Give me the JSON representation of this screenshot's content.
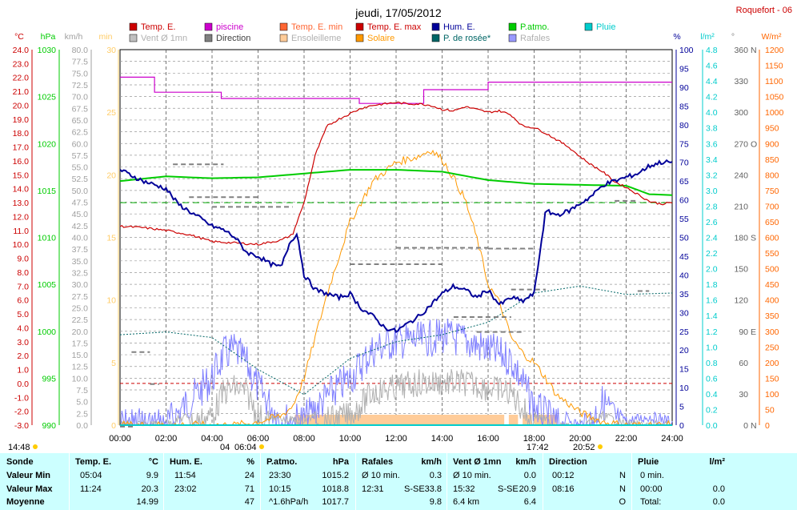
{
  "header": {
    "title": "jeudi, 17/05/2012",
    "station": "Roquefort - 06"
  },
  "legend": [
    {
      "label": "Temp. E.",
      "color": "#cc0000"
    },
    {
      "label": "piscine",
      "color": "#cc00cc"
    },
    {
      "label": "Temp. E. min",
      "color": "#ff6633"
    },
    {
      "label": "Temp. E. max",
      "color": "#cc0000"
    },
    {
      "label": "Hum. E.",
      "color": "#000099"
    },
    {
      "label": "P.atmo.",
      "color": "#00cc00"
    },
    {
      "label": "Pluie",
      "color": "#00cccc"
    },
    {
      "label": "Vent Ø 1mn",
      "color": "#c0c0c0"
    },
    {
      "label": "Direction",
      "color": "#808080"
    },
    {
      "label": "Ensoleilleme",
      "color": "#ffcc99"
    },
    {
      "label": "Solaire",
      "color": "#ff9900"
    },
    {
      "label": "P. de rosée*",
      "color": "#006666"
    },
    {
      "label": "Rafales",
      "color": "#9999ff"
    }
  ],
  "axes": {
    "temp": {
      "unit": "°C",
      "ticks": [
        "24.0",
        "23.0",
        "22.0",
        "21.0",
        "20.0",
        "19.0",
        "18.0",
        "17.0",
        "16.0",
        "15.0",
        "14.0",
        "13.0",
        "12.0",
        "11.0",
        "10.0",
        "9.0",
        "8.0",
        "7.0",
        "6.0",
        "5.0",
        "4.0",
        "3.0",
        "2.0",
        "1.0",
        "0.0",
        "-1.0",
        "-2.0",
        "-3.0"
      ],
      "color": "#cc0000"
    },
    "press": {
      "unit": "hPa",
      "ticks": [
        "1030",
        "1025",
        "1020",
        "1015",
        "1010",
        "1005",
        "1000",
        "995",
        "990"
      ],
      "color": "#00cc00"
    },
    "wind": {
      "unit": "km/h",
      "ticks": [
        "80.0",
        "77.5",
        "75.0",
        "72.5",
        "70.0",
        "67.5",
        "65.0",
        "62.5",
        "60.0",
        "57.5",
        "55.0",
        "52.5",
        "50.0",
        "47.5",
        "45.0",
        "42.5",
        "40.0",
        "37.5",
        "35.0",
        "32.5",
        "30.0",
        "27.5",
        "25.0",
        "22.5",
        "20.0",
        "17.5",
        "15.0",
        "12.5",
        "10.0",
        "7.5",
        "5.0",
        "2.5",
        "0.0"
      ],
      "color": "#a0a0a0"
    },
    "minutes": {
      "unit": "min",
      "ticks": [
        "30",
        "25",
        "20",
        "15",
        "10",
        "5",
        "0"
      ],
      "color": "#ffcc66"
    },
    "hum": {
      "unit": "%",
      "ticks": [
        "100",
        "95",
        "90",
        "85",
        "80",
        "75",
        "70",
        "65",
        "60",
        "55",
        "50",
        "45",
        "40",
        "35",
        "30",
        "25",
        "20",
        "15",
        "10",
        "5",
        "0"
      ],
      "color": "#000099"
    },
    "rain": {
      "unit": "l/m²",
      "ticks": [
        "4.8",
        "4.6",
        "4.4",
        "4.2",
        "4.0",
        "3.8",
        "3.6",
        "3.4",
        "3.2",
        "3.0",
        "2.8",
        "2.6",
        "2.4",
        "2.2",
        "2.0",
        "1.8",
        "1.6",
        "1.4",
        "1.2",
        "1.0",
        "0.8",
        "0.6",
        "0.4",
        "0.2",
        "0.0"
      ],
      "color": "#00cccc"
    },
    "dir": {
      "unit": "°",
      "ticks": [
        {
          "v": "360",
          "c": "N"
        },
        {
          "v": "330",
          "c": ""
        },
        {
          "v": "300",
          "c": ""
        },
        {
          "v": "270",
          "c": "O"
        },
        {
          "v": "240",
          "c": ""
        },
        {
          "v": "210",
          "c": ""
        },
        {
          "v": "180",
          "c": "S"
        },
        {
          "v": "150",
          "c": ""
        },
        {
          "v": "120",
          "c": ""
        },
        {
          "v": "90",
          "c": "E"
        },
        {
          "v": "60",
          "c": ""
        },
        {
          "v": "30",
          "c": ""
        },
        {
          "v": "0",
          "c": "N"
        }
      ],
      "color": "#808080"
    },
    "solar": {
      "unit": "W/m²",
      "ticks": [
        "1200",
        "1150",
        "1100",
        "1050",
        "1000",
        "950",
        "900",
        "850",
        "800",
        "750",
        "700",
        "650",
        "600",
        "550",
        "500",
        "450",
        "400",
        "350",
        "300",
        "250",
        "200",
        "150",
        "100",
        "50",
        "0"
      ],
      "color": "#ff6600"
    },
    "x_ticks": [
      "00:00",
      "02:00",
      "04:00",
      "06:00",
      "08:00",
      "10:00",
      "12:00",
      "14:00",
      "16:00",
      "18:00",
      "20:00",
      "22:00",
      "24:00"
    ]
  },
  "markers": {
    "sunrise": "06:04",
    "sunset": "20:52",
    "start": "14:48",
    "min_t": "04",
    "max_t": "17:42"
  },
  "chart_data": {
    "type": "line",
    "title": "jeudi, 17/05/2012",
    "x_unit": "hours",
    "series": [
      {
        "name": "Temp. E.",
        "unit": "°C",
        "x": [
          0,
          1,
          2,
          3,
          4,
          5,
          6,
          7,
          7.5,
          8,
          8.5,
          9,
          9.5,
          10,
          10.5,
          11,
          11.5,
          12,
          12.5,
          13,
          13.5,
          14,
          14.5,
          15,
          15.5,
          16,
          16.5,
          17,
          17.5,
          18,
          18.5,
          19,
          19.5,
          20,
          20.5,
          21,
          21.5,
          22,
          22.5,
          23,
          23.5,
          24
        ],
        "y": [
          11.3,
          11.2,
          11.0,
          10.7,
          10.2,
          10.1,
          10.0,
          10.3,
          10.7,
          13,
          16.5,
          18.5,
          19.0,
          19.4,
          19.8,
          20.0,
          20.1,
          20.2,
          20.1,
          20.1,
          20.0,
          19.7,
          19.6,
          19.9,
          19.7,
          19.5,
          19.6,
          19.3,
          18.5,
          18.4,
          18.0,
          17.5,
          17.0,
          16.3,
          15.7,
          15.2,
          14.5,
          14.1,
          13.6,
          13.1,
          12.9,
          13.0
        ]
      },
      {
        "name": "piscine",
        "unit": "min",
        "x": [
          0,
          1.4,
          1.5,
          4.3,
          4.4,
          10.3,
          10.4,
          13.1,
          13.2,
          15.6,
          16,
          17,
          18,
          20,
          22,
          24
        ],
        "y": [
          27.8,
          27.8,
          26.6,
          26.6,
          26.1,
          26.1,
          25.7,
          25.7,
          26.8,
          26.8,
          27.4,
          27.4,
          27.4,
          27.4,
          27.4,
          27.4
        ]
      },
      {
        "name": "Hum. E.",
        "unit": "%",
        "x": [
          0,
          1,
          2,
          2.5,
          3,
          4,
          4.5,
          5,
          5.5,
          6,
          6.5,
          7,
          7.4,
          7.7,
          8,
          8.5,
          9,
          9.5,
          10,
          10.5,
          11,
          11.5,
          12,
          12.5,
          13,
          13.5,
          14,
          14.5,
          15,
          15.5,
          16,
          16.5,
          17,
          17.5,
          18,
          18.5,
          19,
          19.5,
          20,
          20.5,
          21,
          21.5,
          22,
          22.5,
          23,
          23.5,
          24
        ],
        "y": [
          68,
          65,
          63,
          59,
          57,
          53,
          52,
          50,
          46,
          45,
          43,
          42,
          49,
          51,
          40,
          36,
          35,
          34,
          35,
          31,
          29,
          26,
          25,
          27,
          29,
          32,
          35,
          37,
          36,
          34,
          36,
          32,
          34,
          33,
          35,
          57,
          56,
          57,
          59,
          61,
          64,
          65,
          66,
          67,
          69,
          70,
          70
        ]
      },
      {
        "name": "P.atmo.",
        "unit": "hPa",
        "x": [
          0,
          2,
          4,
          6,
          8,
          10,
          12,
          14,
          16,
          18,
          20,
          22,
          23,
          24
        ],
        "y": [
          1016.0,
          1016.5,
          1016.3,
          1016.4,
          1016.8,
          1017.2,
          1017.2,
          1017.0,
          1016.1,
          1015.7,
          1015.6,
          1015.5,
          1014.6,
          1014.5
        ]
      },
      {
        "name": "Solaire",
        "unit": "W/m²",
        "x": [
          0,
          5,
          6,
          7,
          7.5,
          8,
          9,
          10,
          11,
          12,
          13,
          13.5,
          14,
          14.5,
          15,
          15.5,
          16,
          16.5,
          17,
          17.5,
          18,
          18.5,
          19,
          20,
          21,
          22,
          24
        ],
        "y": [
          0,
          0,
          10,
          30,
          60,
          150,
          420,
          650,
          780,
          840,
          860,
          880,
          850,
          790,
          720,
          600,
          450,
          390,
          280,
          230,
          200,
          150,
          95,
          40,
          10,
          0,
          0
        ]
      },
      {
        "name": "P. de rosée*",
        "unit": "°C",
        "x": [
          0,
          2,
          4,
          6,
          8,
          9,
          10,
          12,
          14,
          16,
          18,
          20,
          22,
          24
        ],
        "y": [
          3.5,
          3.7,
          3.3,
          1.0,
          -0.8,
          0.5,
          1.8,
          3.0,
          3.5,
          4.4,
          6.5,
          7.0,
          6.4,
          6.5
        ]
      },
      {
        "name": "Vent Ø 1mn",
        "unit": "km/h",
        "x": [
          0,
          2,
          4,
          4.5,
          5,
          5.5,
          6,
          7,
          8,
          9,
          10,
          11,
          12,
          13,
          14,
          15,
          16,
          17,
          18,
          19,
          20,
          21,
          22,
          23,
          24
        ],
        "y": [
          1,
          1,
          5,
          10,
          11,
          10,
          5,
          2,
          2,
          4,
          5,
          10,
          11,
          12,
          12,
          12,
          11,
          10,
          3,
          1,
          0,
          3,
          1,
          1,
          1
        ]
      },
      {
        "name": "Rafales",
        "unit": "km/h",
        "x": [
          0,
          2,
          4,
          4.5,
          5,
          5.5,
          6,
          7,
          8,
          9,
          10,
          11,
          12,
          13,
          14,
          15,
          16,
          17,
          18,
          19,
          20,
          21,
          22,
          23,
          24
        ],
        "y": [
          4,
          4,
          14,
          19,
          20,
          17,
          12,
          5,
          5,
          10,
          14,
          20,
          22,
          22,
          23,
          22,
          20,
          18,
          8,
          4,
          1,
          9,
          2,
          3,
          2
        ]
      },
      {
        "name": "Pluie",
        "unit": "l/m²",
        "x": [
          0,
          24
        ],
        "y": [
          0,
          0
        ]
      }
    ],
    "ensoleillement": {
      "unit": "min",
      "intervals": [
        [
          7.6,
          16.7
        ],
        [
          16.9,
          17.3
        ],
        [
          17.5,
          17.9
        ],
        [
          18.0,
          19.0
        ]
      ]
    }
  },
  "stats": {
    "headers": [
      {
        "name": "Sonde",
        "unit": ""
      },
      {
        "name": "Temp. E.",
        "unit": "°C"
      },
      {
        "name": "Hum. E.",
        "unit": "%"
      },
      {
        "name": "P.atmo.",
        "unit": "hPa"
      },
      {
        "name": "Rafales",
        "unit": "km/h"
      },
      {
        "name": "Vent Ø 1mn",
        "unit": "km/h"
      },
      {
        "name": "Direction",
        "unit": ""
      },
      {
        "name": "Pluie",
        "unit": "l/m²"
      }
    ],
    "row_labels": [
      "Valeur Min",
      "Valeur Max",
      "Moyenne"
    ],
    "temp": [
      [
        "05:04",
        "9.9"
      ],
      [
        "11:24",
        "20.3"
      ],
      [
        "",
        "14.99"
      ]
    ],
    "hum": [
      [
        "11:54",
        "24"
      ],
      [
        "23:02",
        "71"
      ],
      [
        "",
        "47"
      ]
    ],
    "press": [
      [
        "23:30",
        "1015.2"
      ],
      [
        "10:15",
        "1018.8"
      ],
      [
        "^1.6hPa/h",
        "1017.7"
      ]
    ],
    "gust": [
      [
        "Ø 10 min.",
        "",
        "0.3"
      ],
      [
        "12:31",
        "S-SE",
        "33.8"
      ],
      [
        "",
        "",
        "9.8"
      ]
    ],
    "wind": [
      [
        "Ø 10 min.",
        "",
        "0.0"
      ],
      [
        "15:32",
        "S-SE",
        "20.9"
      ],
      [
        "6.4 km",
        "",
        "6.4"
      ]
    ],
    "dir": [
      [
        "00:12",
        "N"
      ],
      [
        "08:16",
        "N"
      ],
      [
        "",
        "O"
      ]
    ],
    "rain": [
      [
        "0 min.",
        ""
      ],
      [
        "00:00",
        "0.0"
      ],
      [
        "Total:",
        "0.0"
      ]
    ]
  }
}
